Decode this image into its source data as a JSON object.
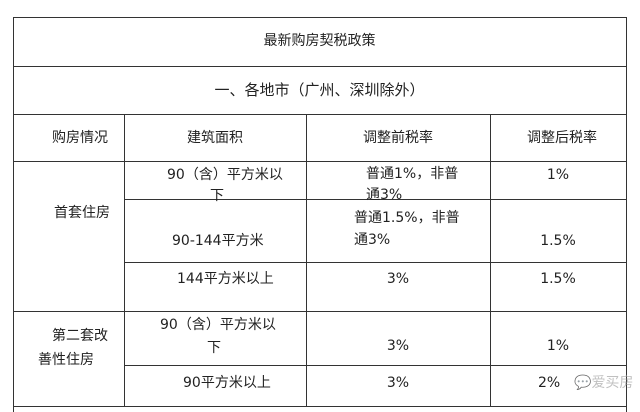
{
  "title": "最新购房契税政策",
  "section": "一、各地市（广州、深圳除外）",
  "headers": [
    "购房情况",
    "建筑面积",
    "调整前税率",
    "调整后税率"
  ],
  "groups": [
    {
      "label_lines": [
        "首套住房"
      ],
      "rows": [
        {
          "area_lines": [
            "90（含）平方米以",
            "下"
          ],
          "before_lines": [
            "普通1%，非普",
            "通3%"
          ],
          "after": "1%"
        },
        {
          "area_lines": [
            "90-144平方米"
          ],
          "before_lines": [
            "普通1.5%，非普",
            "通3%"
          ],
          "after": "1.5%"
        },
        {
          "area_lines": [
            "144平方米以上"
          ],
          "before_lines": [
            "3%"
          ],
          "after": "1.5%"
        }
      ]
    },
    {
      "label_lines": [
        "第二套改",
        "善性住房"
      ],
      "rows": [
        {
          "area_lines": [
            "90（含）平方米以",
            "下"
          ],
          "before_lines": [
            "3%"
          ],
          "after": "1%"
        },
        {
          "area_lines": [
            "90平方米以上"
          ],
          "before_lines": [
            "3%"
          ],
          "after": "2%"
        }
      ]
    }
  ],
  "watermark": "爱买房"
}
